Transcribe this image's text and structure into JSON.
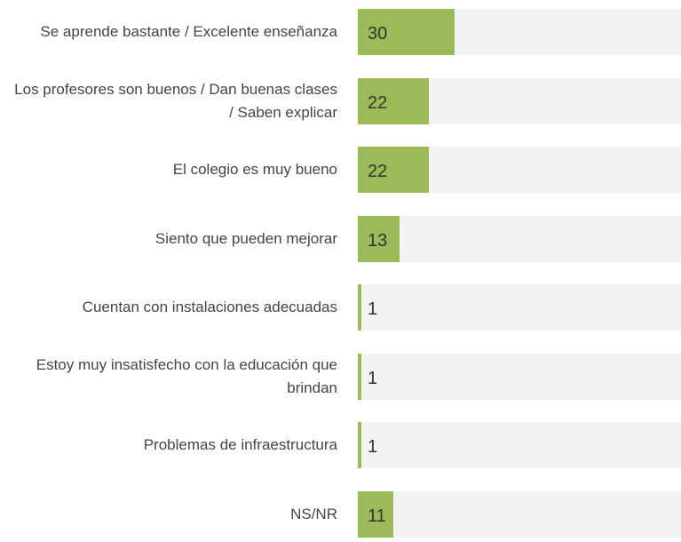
{
  "chart_data": {
    "type": "bar",
    "orientation": "horizontal",
    "categories": [
      "Se aprende bastante / Excelente enseñanza",
      "Los profesores son buenos / Dan buenas clases / Saben explicar",
      "El colegio es muy bueno",
      "Siento que pueden mejorar",
      "Cuentan con instalaciones adecuadas",
      "Estoy muy insatisfecho con la educación que brindan",
      "Problemas de infraestructura",
      "NS/NR"
    ],
    "values": [
      30,
      22,
      22,
      13,
      1,
      1,
      1,
      11
    ],
    "color": "#9bbb59",
    "xlim": [
      0,
      100
    ]
  }
}
